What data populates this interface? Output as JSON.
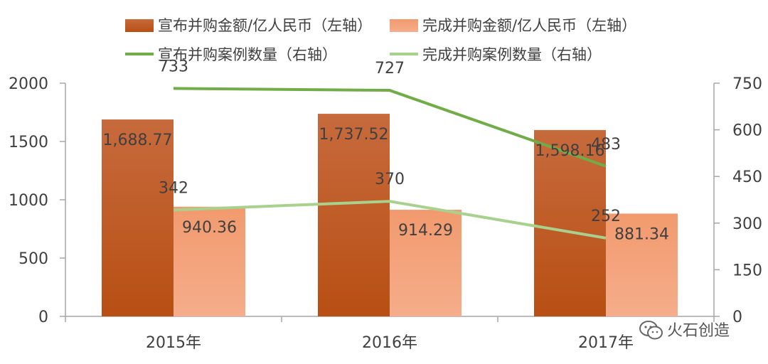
{
  "chart_data": {
    "type": "bar",
    "categories": [
      "2015年",
      "2016年",
      "2017年"
    ],
    "series": [
      {
        "name": "宣布并购金额/亿人民币（左轴）",
        "kind": "bar",
        "axis": "left",
        "color": "#c0571f",
        "values": [
          1688.77,
          1737.52,
          1598.16
        ],
        "labels": [
          "1,688.77",
          "1,737.52",
          "1,598.16"
        ]
      },
      {
        "name": "完成并购金额/亿人民币（左轴）",
        "kind": "bar",
        "axis": "left",
        "color": "#f4a37b",
        "values": [
          940.36,
          914.29,
          881.34
        ],
        "labels": [
          "940.36",
          "914.29",
          "881.34"
        ]
      },
      {
        "name": "宣布并购案例数量（右轴）",
        "kind": "line",
        "axis": "right",
        "color": "#70ad47",
        "values": [
          733,
          727,
          483
        ],
        "labels": [
          "733",
          "727",
          "483"
        ]
      },
      {
        "name": "完成并购案例数量（右轴）",
        "kind": "line",
        "axis": "right",
        "color": "#a9d18e",
        "values": [
          342,
          370,
          252
        ],
        "labels": [
          "342",
          "370",
          "252"
        ]
      }
    ],
    "left_axis": {
      "range": [
        0,
        2000
      ],
      "ticks": [
        "0",
        "500",
        "1000",
        "1500",
        "2000"
      ]
    },
    "right_axis": {
      "range": [
        0,
        750
      ],
      "ticks": [
        "0",
        "150",
        "300",
        "450",
        "600",
        "750"
      ]
    },
    "grid": false,
    "legend_position": "top"
  },
  "watermark": {
    "text": "火石创造",
    "icon": "wechat-icon"
  }
}
